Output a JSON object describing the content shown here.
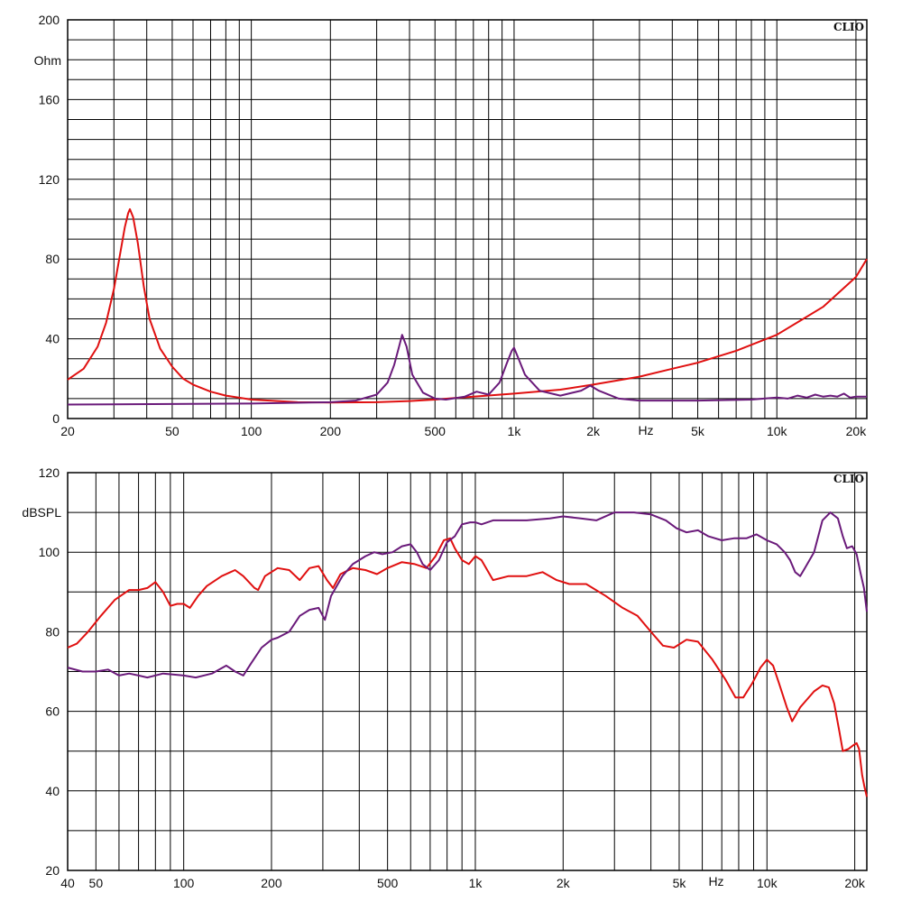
{
  "chart_data": [
    {
      "type": "line",
      "brand": "CLIO",
      "ylabel": "Ohm",
      "xlabel": "Hz",
      "x_scale": "log",
      "xlim": [
        20,
        22000
      ],
      "ylim": [
        0,
        200
      ],
      "grid": true,
      "y_ticks": [
        "0",
        "40",
        "80",
        "120",
        "160",
        "200"
      ],
      "x_ticks": [
        {
          "v": 20,
          "label": "20"
        },
        {
          "v": 50,
          "label": "50"
        },
        {
          "v": 100,
          "label": "100"
        },
        {
          "v": 200,
          "label": "200"
        },
        {
          "v": 500,
          "label": "500"
        },
        {
          "v": 1000,
          "label": "1k"
        },
        {
          "v": 2000,
          "label": "2k"
        },
        {
          "v": 5000,
          "label": "5k"
        },
        {
          "v": 10000,
          "label": "10k"
        },
        {
          "v": 20000,
          "label": "20k"
        }
      ],
      "series": [
        {
          "color": "#e01010",
          "points": [
            [
              20,
              19.5
            ],
            [
              23,
              25
            ],
            [
              26,
              36
            ],
            [
              28,
              48
            ],
            [
              30,
              65
            ],
            [
              32,
              86
            ],
            [
              33,
              96
            ],
            [
              34,
              103
            ],
            [
              34.5,
              105
            ],
            [
              35.5,
              101
            ],
            [
              37,
              88
            ],
            [
              39,
              66
            ],
            [
              41,
              50
            ],
            [
              45,
              35
            ],
            [
              50,
              26
            ],
            [
              55,
              20
            ],
            [
              60,
              17
            ],
            [
              70,
              13.5
            ],
            [
              80,
              11.5
            ],
            [
              100,
              9.5
            ],
            [
              150,
              8.2
            ],
            [
              200,
              8
            ],
            [
              300,
              8.2
            ],
            [
              400,
              8.8
            ],
            [
              500,
              9.5
            ],
            [
              700,
              11
            ],
            [
              1000,
              12.5
            ],
            [
              1500,
              14.5
            ],
            [
              2000,
              17
            ],
            [
              3000,
              21
            ],
            [
              4000,
              25
            ],
            [
              5000,
              28
            ],
            [
              7000,
              34
            ],
            [
              10000,
              42
            ],
            [
              15000,
              56
            ],
            [
              20000,
              71
            ],
            [
              22000,
              80
            ]
          ]
        },
        {
          "color": "#6a1a7a",
          "points": [
            [
              20,
              7
            ],
            [
              100,
              7.5
            ],
            [
              200,
              8.2
            ],
            [
              250,
              9
            ],
            [
              300,
              12
            ],
            [
              330,
              18
            ],
            [
              350,
              27
            ],
            [
              365,
              36
            ],
            [
              375,
              42
            ],
            [
              390,
              36
            ],
            [
              410,
              22
            ],
            [
              450,
              13
            ],
            [
              500,
              10
            ],
            [
              550,
              9.5
            ],
            [
              650,
              11
            ],
            [
              720,
              13.5
            ],
            [
              800,
              12
            ],
            [
              880,
              18
            ],
            [
              940,
              28
            ],
            [
              980,
              34
            ],
            [
              1000,
              35.5
            ],
            [
              1040,
              30
            ],
            [
              1100,
              22
            ],
            [
              1250,
              14
            ],
            [
              1500,
              11.5
            ],
            [
              1800,
              14
            ],
            [
              1950,
              16.5
            ],
            [
              2100,
              14
            ],
            [
              2500,
              10
            ],
            [
              3000,
              9
            ],
            [
              5000,
              9
            ],
            [
              8000,
              9.5
            ],
            [
              10000,
              10.5
            ],
            [
              11000,
              10
            ],
            [
              12000,
              11.5
            ],
            [
              13000,
              10.5
            ],
            [
              14000,
              12
            ],
            [
              15000,
              11
            ],
            [
              16000,
              11.5
            ],
            [
              17000,
              11
            ],
            [
              18000,
              12.5
            ],
            [
              19000,
              10.5
            ],
            [
              20000,
              11
            ],
            [
              22000,
              11
            ]
          ]
        }
      ]
    },
    {
      "type": "line",
      "brand": "CLIO",
      "ylabel": "dBSPL",
      "xlabel": "Hz",
      "x_scale": "log",
      "xlim": [
        40,
        22000
      ],
      "ylim": [
        20,
        120
      ],
      "grid": true,
      "y_ticks": [
        "20",
        "40",
        "60",
        "80",
        "100",
        "120"
      ],
      "x_ticks": [
        {
          "v": 40,
          "label": "40"
        },
        {
          "v": 50,
          "label": "50"
        },
        {
          "v": 100,
          "label": "100"
        },
        {
          "v": 200,
          "label": "200"
        },
        {
          "v": 500,
          "label": "500"
        },
        {
          "v": 1000,
          "label": "1k"
        },
        {
          "v": 2000,
          "label": "2k"
        },
        {
          "v": 5000,
          "label": "5k"
        },
        {
          "v": 10000,
          "label": "10k"
        },
        {
          "v": 20000,
          "label": "20k"
        }
      ],
      "series": [
        {
          "color": "#e01010",
          "points": [
            [
              40,
              76
            ],
            [
              43,
              77
            ],
            [
              47,
              80
            ],
            [
              52,
              84
            ],
            [
              58,
              88
            ],
            [
              65,
              90.5
            ],
            [
              70,
              90.5
            ],
            [
              75,
              91
            ],
            [
              80,
              92.5
            ],
            [
              85,
              90
            ],
            [
              90,
              86.5
            ],
            [
              95,
              87
            ],
            [
              100,
              87
            ],
            [
              105,
              86
            ],
            [
              112,
              89
            ],
            [
              120,
              91.5
            ],
            [
              135,
              94
            ],
            [
              150,
              95.5
            ],
            [
              160,
              94
            ],
            [
              175,
              91
            ],
            [
              180,
              90.5
            ],
            [
              190,
              94
            ],
            [
              210,
              96
            ],
            [
              230,
              95.5
            ],
            [
              250,
              93
            ],
            [
              270,
              96
            ],
            [
              290,
              96.5
            ],
            [
              310,
              93
            ],
            [
              325,
              91
            ],
            [
              345,
              94.5
            ],
            [
              380,
              96
            ],
            [
              420,
              95.5
            ],
            [
              460,
              94.5
            ],
            [
              500,
              96
            ],
            [
              560,
              97.5
            ],
            [
              620,
              97
            ],
            [
              680,
              96
            ],
            [
              730,
              99
            ],
            [
              780,
              103
            ],
            [
              820,
              103.5
            ],
            [
              850,
              101
            ],
            [
              900,
              98
            ],
            [
              950,
              97
            ],
            [
              1000,
              99
            ],
            [
              1050,
              98
            ],
            [
              1150,
              93
            ],
            [
              1300,
              94
            ],
            [
              1500,
              94
            ],
            [
              1700,
              95
            ],
            [
              1900,
              93
            ],
            [
              2100,
              92
            ],
            [
              2400,
              92
            ],
            [
              2800,
              89
            ],
            [
              3200,
              86
            ],
            [
              3600,
              84
            ],
            [
              4000,
              80
            ],
            [
              4400,
              76.5
            ],
            [
              4800,
              76
            ],
            [
              5300,
              78
            ],
            [
              5800,
              77.5
            ],
            [
              6500,
              73
            ],
            [
              7200,
              68
            ],
            [
              7800,
              63.5
            ],
            [
              8300,
              63.5
            ],
            [
              8900,
              67
            ],
            [
              9500,
              71
            ],
            [
              10000,
              73
            ],
            [
              10500,
              71.5
            ],
            [
              11000,
              67
            ],
            [
              11700,
              61
            ],
            [
              12200,
              57.5
            ],
            [
              13000,
              61
            ],
            [
              14500,
              65
            ],
            [
              15500,
              66.5
            ],
            [
              16300,
              66
            ],
            [
              17000,
              62
            ],
            [
              17700,
              55
            ],
            [
              18200,
              50
            ],
            [
              19000,
              50.5
            ],
            [
              19800,
              51.5
            ],
            [
              20300,
              52
            ],
            [
              20700,
              50.5
            ],
            [
              21200,
              44
            ],
            [
              21600,
              41
            ],
            [
              22000,
              38.5
            ]
          ]
        },
        {
          "color": "#6a1a7a",
          "points": [
            [
              40,
              71
            ],
            [
              45,
              70
            ],
            [
              50,
              70
            ],
            [
              55,
              70.5
            ],
            [
              60,
              69
            ],
            [
              65,
              69.5
            ],
            [
              70,
              69
            ],
            [
              75,
              68.5
            ],
            [
              85,
              69.5
            ],
            [
              100,
              69
            ],
            [
              110,
              68.5
            ],
            [
              125,
              69.5
            ],
            [
              140,
              71.5
            ],
            [
              150,
              70
            ],
            [
              160,
              69
            ],
            [
              170,
              72
            ],
            [
              185,
              76
            ],
            [
              200,
              78
            ],
            [
              210,
              78.5
            ],
            [
              230,
              80
            ],
            [
              250,
              84
            ],
            [
              270,
              85.5
            ],
            [
              290,
              86
            ],
            [
              305,
              83
            ],
            [
              320,
              89
            ],
            [
              350,
              94
            ],
            [
              380,
              97
            ],
            [
              420,
              99
            ],
            [
              450,
              100
            ],
            [
              480,
              99.5
            ],
            [
              520,
              100
            ],
            [
              560,
              101.5
            ],
            [
              600,
              102
            ],
            [
              630,
              100
            ],
            [
              660,
              97
            ],
            [
              700,
              95.5
            ],
            [
              750,
              98
            ],
            [
              800,
              102.5
            ],
            [
              850,
              104
            ],
            [
              900,
              107
            ],
            [
              960,
              107.5
            ],
            [
              1000,
              107.5
            ],
            [
              1050,
              107
            ],
            [
              1150,
              108
            ],
            [
              1300,
              108
            ],
            [
              1500,
              108
            ],
            [
              1800,
              108.5
            ],
            [
              2000,
              109
            ],
            [
              2300,
              108.5
            ],
            [
              2600,
              108
            ],
            [
              3000,
              110
            ],
            [
              3500,
              110
            ],
            [
              4000,
              109.5
            ],
            [
              4500,
              108
            ],
            [
              4900,
              106
            ],
            [
              5300,
              105
            ],
            [
              5800,
              105.5
            ],
            [
              6300,
              104
            ],
            [
              7000,
              103
            ],
            [
              7700,
              103.5
            ],
            [
              8500,
              103.5
            ],
            [
              9200,
              104.5
            ],
            [
              10000,
              103
            ],
            [
              10800,
              102
            ],
            [
              11500,
              100
            ],
            [
              12000,
              98
            ],
            [
              12500,
              95
            ],
            [
              13000,
              94
            ],
            [
              13500,
              96
            ],
            [
              14500,
              100
            ],
            [
              15500,
              108
            ],
            [
              16500,
              110
            ],
            [
              17500,
              108.5
            ],
            [
              18200,
              104
            ],
            [
              18800,
              101
            ],
            [
              19600,
              101.5
            ],
            [
              20300,
              99.5
            ],
            [
              20900,
              95
            ],
            [
              21500,
              91
            ],
            [
              22000,
              85
            ]
          ]
        }
      ]
    }
  ]
}
